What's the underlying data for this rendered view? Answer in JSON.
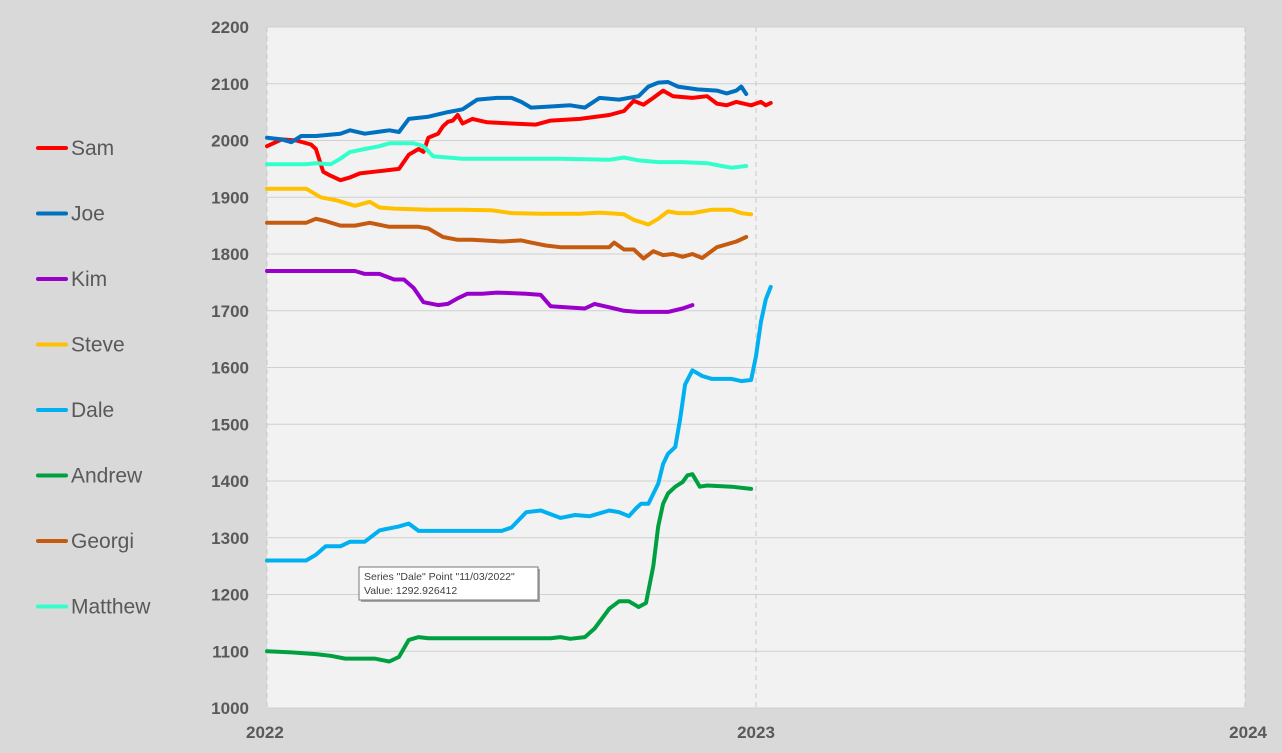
{
  "chart_data": {
    "type": "line",
    "title": "",
    "xlabel": "",
    "ylabel": "",
    "ylim": [
      1000,
      2200
    ],
    "yticks": [
      "1000",
      "1100",
      "1200",
      "1300",
      "1400",
      "1500",
      "1600",
      "1700",
      "1800",
      "1900",
      "2000",
      "2100",
      "2200"
    ],
    "xlim": [
      2022,
      2024
    ],
    "xticks": [
      "2022",
      "2023",
      "2024"
    ],
    "grid": "horizontal",
    "legend": "left",
    "series": [
      {
        "name": "Sam",
        "color": "#ff0000",
        "points": [
          [
            2022.0,
            1990
          ],
          [
            2022.03,
            2002
          ],
          [
            2022.06,
            2000
          ],
          [
            2022.09,
            1993
          ],
          [
            2022.1,
            1985
          ],
          [
            2022.115,
            1945
          ],
          [
            2022.13,
            1938
          ],
          [
            2022.15,
            1930
          ],
          [
            2022.17,
            1935
          ],
          [
            2022.19,
            1942
          ],
          [
            2022.22,
            1945
          ],
          [
            2022.25,
            1948
          ],
          [
            2022.27,
            1950
          ],
          [
            2022.29,
            1975
          ],
          [
            2022.31,
            1985
          ],
          [
            2022.32,
            1980
          ],
          [
            2022.33,
            2005
          ],
          [
            2022.35,
            2012
          ],
          [
            2022.36,
            2025
          ],
          [
            2022.37,
            2033
          ],
          [
            2022.38,
            2035
          ],
          [
            2022.39,
            2045
          ],
          [
            2022.4,
            2030
          ],
          [
            2022.42,
            2038
          ],
          [
            2022.45,
            2032
          ],
          [
            2022.5,
            2030
          ],
          [
            2022.55,
            2028
          ],
          [
            2022.58,
            2035
          ],
          [
            2022.64,
            2038
          ],
          [
            2022.7,
            2045
          ],
          [
            2022.73,
            2052
          ],
          [
            2022.75,
            2070
          ],
          [
            2022.77,
            2063
          ],
          [
            2022.79,
            2075
          ],
          [
            2022.81,
            2088
          ],
          [
            2022.83,
            2078
          ],
          [
            2022.87,
            2075
          ],
          [
            2022.9,
            2078
          ],
          [
            2022.92,
            2065
          ],
          [
            2022.94,
            2062
          ],
          [
            2022.96,
            2068
          ],
          [
            2022.99,
            2062
          ],
          [
            2023.01,
            2068
          ],
          [
            2023.02,
            2062
          ],
          [
            2023.03,
            2066
          ]
        ]
      },
      {
        "name": "Joe",
        "color": "#0070c0",
        "points": [
          [
            2022.0,
            2005
          ],
          [
            2022.03,
            2002
          ],
          [
            2022.05,
            1997
          ],
          [
            2022.07,
            2008
          ],
          [
            2022.1,
            2008
          ],
          [
            2022.15,
            2012
          ],
          [
            2022.17,
            2018
          ],
          [
            2022.2,
            2012
          ],
          [
            2022.25,
            2018
          ],
          [
            2022.27,
            2015
          ],
          [
            2022.29,
            2038
          ],
          [
            2022.33,
            2042
          ],
          [
            2022.37,
            2050
          ],
          [
            2022.4,
            2055
          ],
          [
            2022.43,
            2072
          ],
          [
            2022.47,
            2075
          ],
          [
            2022.5,
            2075
          ],
          [
            2022.52,
            2068
          ],
          [
            2022.54,
            2058
          ],
          [
            2022.58,
            2060
          ],
          [
            2022.62,
            2062
          ],
          [
            2022.65,
            2058
          ],
          [
            2022.68,
            2075
          ],
          [
            2022.72,
            2072
          ],
          [
            2022.76,
            2078
          ],
          [
            2022.78,
            2095
          ],
          [
            2022.8,
            2102
          ],
          [
            2022.82,
            2103
          ],
          [
            2022.84,
            2095
          ],
          [
            2022.88,
            2090
          ],
          [
            2022.92,
            2088
          ],
          [
            2022.94,
            2083
          ],
          [
            2022.96,
            2088
          ],
          [
            2022.97,
            2095
          ],
          [
            2022.98,
            2082
          ]
        ]
      },
      {
        "name": "Kim",
        "color": "#9900cc",
        "points": [
          [
            2022.0,
            1770
          ],
          [
            2022.1,
            1770
          ],
          [
            2022.18,
            1770
          ],
          [
            2022.2,
            1765
          ],
          [
            2022.23,
            1765
          ],
          [
            2022.26,
            1755
          ],
          [
            2022.28,
            1755
          ],
          [
            2022.3,
            1740
          ],
          [
            2022.32,
            1715
          ],
          [
            2022.35,
            1710
          ],
          [
            2022.37,
            1712
          ],
          [
            2022.39,
            1722
          ],
          [
            2022.41,
            1730
          ],
          [
            2022.44,
            1730
          ],
          [
            2022.47,
            1732
          ],
          [
            2022.53,
            1730
          ],
          [
            2022.56,
            1728
          ],
          [
            2022.58,
            1708
          ],
          [
            2022.61,
            1706
          ],
          [
            2022.65,
            1704
          ],
          [
            2022.67,
            1712
          ],
          [
            2022.7,
            1706
          ],
          [
            2022.73,
            1700
          ],
          [
            2022.76,
            1698
          ],
          [
            2022.82,
            1698
          ],
          [
            2022.85,
            1704
          ],
          [
            2022.87,
            1710
          ]
        ]
      },
      {
        "name": "Steve",
        "color": "#ffc000",
        "points": [
          [
            2022.0,
            1915
          ],
          [
            2022.08,
            1915
          ],
          [
            2022.11,
            1900
          ],
          [
            2022.14,
            1895
          ],
          [
            2022.18,
            1885
          ],
          [
            2022.21,
            1892
          ],
          [
            2022.23,
            1882
          ],
          [
            2022.26,
            1880
          ],
          [
            2022.33,
            1878
          ],
          [
            2022.4,
            1878
          ],
          [
            2022.46,
            1877
          ],
          [
            2022.5,
            1872
          ],
          [
            2022.56,
            1871
          ],
          [
            2022.64,
            1871
          ],
          [
            2022.68,
            1873
          ],
          [
            2022.73,
            1870
          ],
          [
            2022.75,
            1860
          ],
          [
            2022.78,
            1852
          ],
          [
            2022.8,
            1862
          ],
          [
            2022.82,
            1875
          ],
          [
            2022.84,
            1872
          ],
          [
            2022.87,
            1872
          ],
          [
            2022.91,
            1878
          ],
          [
            2022.95,
            1878
          ],
          [
            2022.97,
            1872
          ],
          [
            2022.99,
            1870
          ]
        ]
      },
      {
        "name": "Dale",
        "color": "#00b0f0",
        "points": [
          [
            2022.0,
            1260
          ],
          [
            2022.08,
            1260
          ],
          [
            2022.1,
            1270
          ],
          [
            2022.12,
            1285
          ],
          [
            2022.15,
            1285
          ],
          [
            2022.17,
            1293
          ],
          [
            2022.2,
            1293
          ],
          [
            2022.23,
            1313
          ],
          [
            2022.27,
            1320
          ],
          [
            2022.29,
            1325
          ],
          [
            2022.31,
            1312
          ],
          [
            2022.33,
            1312
          ],
          [
            2022.4,
            1312
          ],
          [
            2022.48,
            1312
          ],
          [
            2022.5,
            1318
          ],
          [
            2022.53,
            1345
          ],
          [
            2022.56,
            1348
          ],
          [
            2022.6,
            1335
          ],
          [
            2022.63,
            1340
          ],
          [
            2022.66,
            1338
          ],
          [
            2022.7,
            1348
          ],
          [
            2022.72,
            1345
          ],
          [
            2022.74,
            1338
          ],
          [
            2022.755,
            1352
          ],
          [
            2022.765,
            1360
          ],
          [
            2022.78,
            1360
          ],
          [
            2022.8,
            1395
          ],
          [
            2022.81,
            1430
          ],
          [
            2022.82,
            1448
          ],
          [
            2022.835,
            1460
          ],
          [
            2022.845,
            1510
          ],
          [
            2022.855,
            1570
          ],
          [
            2022.87,
            1595
          ],
          [
            2022.89,
            1585
          ],
          [
            2022.91,
            1580
          ],
          [
            2022.95,
            1580
          ],
          [
            2022.97,
            1576
          ],
          [
            2022.99,
            1578
          ],
          [
            2023.0,
            1620
          ],
          [
            2023.01,
            1680
          ],
          [
            2023.02,
            1720
          ],
          [
            2023.03,
            1742
          ]
        ]
      },
      {
        "name": "Andrew",
        "color": "#00a040",
        "points": [
          [
            2022.0,
            1100
          ],
          [
            2022.05,
            1098
          ],
          [
            2022.1,
            1095
          ],
          [
            2022.13,
            1092
          ],
          [
            2022.16,
            1087
          ],
          [
            2022.22,
            1087
          ],
          [
            2022.25,
            1082
          ],
          [
            2022.27,
            1090
          ],
          [
            2022.29,
            1120
          ],
          [
            2022.31,
            1125
          ],
          [
            2022.33,
            1123
          ],
          [
            2022.4,
            1123
          ],
          [
            2022.5,
            1123
          ],
          [
            2022.58,
            1123
          ],
          [
            2022.6,
            1125
          ],
          [
            2022.62,
            1122
          ],
          [
            2022.65,
            1125
          ],
          [
            2022.67,
            1140
          ],
          [
            2022.7,
            1175
          ],
          [
            2022.72,
            1188
          ],
          [
            2022.74,
            1188
          ],
          [
            2022.76,
            1178
          ],
          [
            2022.775,
            1185
          ],
          [
            2022.79,
            1250
          ],
          [
            2022.8,
            1320
          ],
          [
            2022.81,
            1360
          ],
          [
            2022.82,
            1378
          ],
          [
            2022.835,
            1390
          ],
          [
            2022.85,
            1398
          ],
          [
            2022.86,
            1410
          ],
          [
            2022.87,
            1412
          ],
          [
            2022.885,
            1390
          ],
          [
            2022.9,
            1392
          ],
          [
            2022.95,
            1390
          ],
          [
            2022.99,
            1386
          ]
        ]
      },
      {
        "name": "Georgi",
        "color": "#c55a11",
        "points": [
          [
            2022.0,
            1855
          ],
          [
            2022.08,
            1855
          ],
          [
            2022.1,
            1862
          ],
          [
            2022.12,
            1858
          ],
          [
            2022.15,
            1850
          ],
          [
            2022.18,
            1850
          ],
          [
            2022.21,
            1855
          ],
          [
            2022.25,
            1848
          ],
          [
            2022.31,
            1848
          ],
          [
            2022.33,
            1845
          ],
          [
            2022.36,
            1830
          ],
          [
            2022.39,
            1825
          ],
          [
            2022.42,
            1825
          ],
          [
            2022.48,
            1822
          ],
          [
            2022.52,
            1824
          ],
          [
            2022.54,
            1820
          ],
          [
            2022.57,
            1815
          ],
          [
            2022.6,
            1812
          ],
          [
            2022.7,
            1812
          ],
          [
            2022.71,
            1820
          ],
          [
            2022.73,
            1808
          ],
          [
            2022.75,
            1808
          ],
          [
            2022.77,
            1792
          ],
          [
            2022.79,
            1805
          ],
          [
            2022.81,
            1798
          ],
          [
            2022.83,
            1800
          ],
          [
            2022.85,
            1795
          ],
          [
            2022.87,
            1800
          ],
          [
            2022.89,
            1793
          ],
          [
            2022.92,
            1812
          ],
          [
            2022.96,
            1822
          ],
          [
            2022.98,
            1830
          ]
        ]
      },
      {
        "name": "Matthew",
        "color": "#33ffcc",
        "points": [
          [
            2022.0,
            1958
          ],
          [
            2022.08,
            1958
          ],
          [
            2022.1,
            1960
          ],
          [
            2022.13,
            1958
          ],
          [
            2022.15,
            1968
          ],
          [
            2022.17,
            1980
          ],
          [
            2022.2,
            1985
          ],
          [
            2022.23,
            1990
          ],
          [
            2022.25,
            1995
          ],
          [
            2022.3,
            1995
          ],
          [
            2022.32,
            1990
          ],
          [
            2022.34,
            1972
          ],
          [
            2022.37,
            1970
          ],
          [
            2022.4,
            1968
          ],
          [
            2022.5,
            1968
          ],
          [
            2022.6,
            1968
          ],
          [
            2022.7,
            1966
          ],
          [
            2022.73,
            1970
          ],
          [
            2022.76,
            1965
          ],
          [
            2022.8,
            1962
          ],
          [
            2022.85,
            1962
          ],
          [
            2022.9,
            1960
          ],
          [
            2022.93,
            1955
          ],
          [
            2022.95,
            1952
          ],
          [
            2022.98,
            1955
          ]
        ]
      }
    ]
  },
  "tooltip": {
    "line1": "Series \"Dale\" Point \"11/03/2022\"",
    "line2": "Value: 1292.926412"
  }
}
